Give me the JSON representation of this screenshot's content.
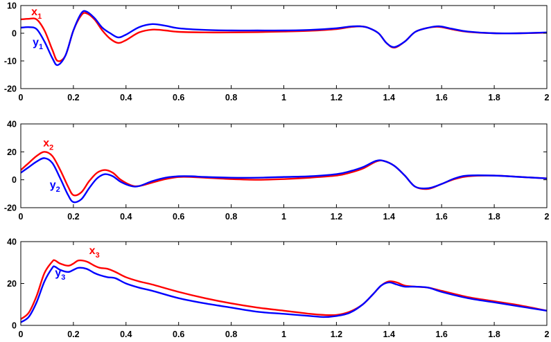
{
  "chart_data": [
    {
      "type": "line",
      "xlim": [
        0,
        2
      ],
      "ylim": [
        -20,
        10
      ],
      "xticks": [
        "0",
        "0.2",
        "0.4",
        "0.6",
        "0.8",
        "1",
        "1.2",
        "1.4",
        "1.6",
        "1.8",
        "2"
      ],
      "yticks": [
        "-20",
        "-10",
        "0",
        "10"
      ],
      "grid": false,
      "series": [
        {
          "name": "x1",
          "color": "#ff0000",
          "x": [
            0,
            0.03,
            0.06,
            0.09,
            0.12,
            0.14,
            0.17,
            0.2,
            0.23,
            0.25,
            0.28,
            0.31,
            0.34,
            0.37,
            0.4,
            0.45,
            0.5,
            0.55,
            0.6,
            0.7,
            0.8,
            0.9,
            1.0,
            1.1,
            1.2,
            1.25,
            1.29,
            1.32,
            1.36,
            1.39,
            1.42,
            1.46,
            1.5,
            1.55,
            1.59,
            1.64,
            1.7,
            1.8,
            1.9,
            2.0
          ],
          "y": [
            5,
            5.2,
            5,
            1,
            -6,
            -10,
            -8,
            1,
            6.5,
            7.2,
            5,
            1,
            -2,
            -3.5,
            -2.5,
            0.3,
            1.3,
            1.0,
            0.5,
            0.3,
            0.3,
            0.4,
            0.6,
            0.9,
            1.5,
            2.2,
            2.5,
            2.0,
            0,
            -3.5,
            -5.2,
            -3,
            0.5,
            2,
            2.3,
            1.4,
            0.5,
            0,
            0,
            0.2
          ]
        },
        {
          "name": "y1",
          "color": "#0000ff",
          "x": [
            0,
            0.03,
            0.06,
            0.09,
            0.12,
            0.14,
            0.17,
            0.2,
            0.23,
            0.25,
            0.28,
            0.31,
            0.34,
            0.37,
            0.4,
            0.45,
            0.5,
            0.55,
            0.6,
            0.7,
            0.8,
            0.9,
            1.0,
            1.1,
            1.2,
            1.25,
            1.29,
            1.32,
            1.36,
            1.39,
            1.42,
            1.46,
            1.5,
            1.55,
            1.59,
            1.64,
            1.7,
            1.8,
            1.9,
            2.0
          ],
          "y": [
            2,
            2.2,
            1.5,
            -3,
            -9,
            -11.5,
            -8,
            1,
            7.2,
            7.8,
            5.5,
            2,
            0,
            -1.5,
            -0.5,
            2.2,
            3.3,
            2.7,
            1.8,
            1.2,
            1.0,
            1.0,
            1.0,
            1.2,
            1.8,
            2.4,
            2.5,
            2.0,
            0,
            -3.5,
            -5,
            -3,
            0.5,
            2,
            2.5,
            1.6,
            0.6,
            0,
            0,
            0.3
          ]
        }
      ],
      "annotations": [
        {
          "text": "x",
          "sub": "1",
          "color": "#ff0000",
          "at": [
            0.04,
            6.5
          ]
        },
        {
          "text": "y",
          "sub": "1",
          "color": "#0000ff",
          "at": [
            0.045,
            -4.5
          ]
        }
      ]
    },
    {
      "type": "line",
      "xlim": [
        0,
        2
      ],
      "ylim": [
        -20,
        40
      ],
      "xticks": [
        "0",
        "0.2",
        "0.4",
        "0.6",
        "0.8",
        "1",
        "1.2",
        "1.4",
        "1.6",
        "1.8",
        "2"
      ],
      "yticks": [
        "-20",
        "0",
        "20",
        "40"
      ],
      "grid": false,
      "series": [
        {
          "name": "x2",
          "color": "#ff0000",
          "x": [
            0,
            0.03,
            0.06,
            0.09,
            0.12,
            0.15,
            0.18,
            0.2,
            0.23,
            0.26,
            0.29,
            0.32,
            0.35,
            0.38,
            0.42,
            0.45,
            0.5,
            0.55,
            0.6,
            0.65,
            0.7,
            0.8,
            0.9,
            1.0,
            1.1,
            1.2,
            1.25,
            1.3,
            1.35,
            1.38,
            1.42,
            1.46,
            1.5,
            1.55,
            1.6,
            1.65,
            1.7,
            1.8,
            1.9,
            2.0
          ],
          "y": [
            7,
            12,
            17,
            20,
            17,
            7,
            -5,
            -11,
            -9,
            -1,
            5,
            7,
            5,
            0,
            -4,
            -4.5,
            -2,
            0.5,
            2,
            2,
            1.5,
            0.5,
            0,
            0.5,
            1.5,
            3,
            5,
            8,
            13,
            13.5,
            10,
            3,
            -5,
            -6.5,
            -3,
            0.5,
            2.5,
            3,
            2,
            1
          ]
        },
        {
          "name": "y2",
          "color": "#0000ff",
          "x": [
            0,
            0.03,
            0.06,
            0.09,
            0.12,
            0.15,
            0.18,
            0.2,
            0.23,
            0.26,
            0.29,
            0.32,
            0.35,
            0.38,
            0.42,
            0.45,
            0.5,
            0.55,
            0.6,
            0.65,
            0.7,
            0.8,
            0.9,
            1.0,
            1.1,
            1.2,
            1.25,
            1.3,
            1.35,
            1.38,
            1.42,
            1.46,
            1.5,
            1.55,
            1.6,
            1.65,
            1.7,
            1.8,
            1.9,
            2.0
          ],
          "y": [
            5,
            9,
            13,
            15.5,
            12,
            1,
            -11,
            -16,
            -14,
            -6,
            1,
            4,
            2.5,
            -1.5,
            -4.5,
            -4.5,
            -1,
            1.5,
            2.5,
            2.5,
            2,
            1.5,
            1.5,
            2,
            2.5,
            4,
            6,
            9,
            13.5,
            13.5,
            10,
            3,
            -5,
            -6,
            -3,
            1,
            3,
            3,
            2,
            1
          ]
        }
      ],
      "annotations": [
        {
          "text": "x",
          "sub": "2",
          "color": "#ff0000",
          "at": [
            0.085,
            24
          ]
        },
        {
          "text": "y",
          "sub": "2",
          "color": "#0000ff",
          "at": [
            0.11,
            -6
          ]
        }
      ]
    },
    {
      "type": "line",
      "xlim": [
        0,
        2
      ],
      "ylim": [
        0,
        40
      ],
      "xticks": [
        "0",
        "0.2",
        "0.4",
        "0.6",
        "0.8",
        "1",
        "1.2",
        "1.4",
        "1.6",
        "1.8",
        "2"
      ],
      "yticks": [
        "0",
        "20",
        "40"
      ],
      "grid": false,
      "series": [
        {
          "name": "x3",
          "color": "#ff0000",
          "x": [
            0,
            0.03,
            0.06,
            0.09,
            0.12,
            0.13,
            0.15,
            0.18,
            0.2,
            0.22,
            0.25,
            0.28,
            0.3,
            0.33,
            0.36,
            0.4,
            0.45,
            0.5,
            0.6,
            0.7,
            0.8,
            0.9,
            1.0,
            1.1,
            1.15,
            1.2,
            1.25,
            1.3,
            1.34,
            1.37,
            1.4,
            1.43,
            1.46,
            1.5,
            1.55,
            1.6,
            1.7,
            1.8,
            1.9,
            2.0
          ],
          "y": [
            3,
            6,
            14,
            25,
            30.5,
            31,
            29.5,
            28.5,
            29.5,
            31,
            30.5,
            28.5,
            27.5,
            27,
            25.5,
            23,
            21,
            19.5,
            16,
            13,
            10.5,
            8.5,
            7,
            5.5,
            5,
            5,
            6.5,
            10,
            15,
            19,
            21,
            20.5,
            19,
            18.5,
            18,
            16.5,
            13.5,
            11.5,
            9.5,
            7
          ]
        },
        {
          "name": "y3",
          "color": "#0000ff",
          "x": [
            0,
            0.03,
            0.06,
            0.09,
            0.12,
            0.13,
            0.15,
            0.18,
            0.2,
            0.22,
            0.25,
            0.28,
            0.3,
            0.33,
            0.36,
            0.4,
            0.45,
            0.5,
            0.6,
            0.7,
            0.8,
            0.9,
            1.0,
            1.1,
            1.15,
            1.2,
            1.25,
            1.3,
            1.34,
            1.37,
            1.4,
            1.43,
            1.46,
            1.5,
            1.55,
            1.6,
            1.7,
            1.8,
            1.9,
            2.0
          ],
          "y": [
            1.5,
            4,
            11,
            21,
            27.5,
            28,
            26.5,
            25.5,
            26.5,
            27.5,
            27,
            25,
            24,
            23,
            22.5,
            20,
            18,
            16.5,
            13,
            10.5,
            8.5,
            6.5,
            5.5,
            4.5,
            4,
            4.5,
            6,
            10,
            15,
            19,
            20.5,
            19.5,
            18.5,
            18.5,
            18,
            16,
            13,
            11,
            9,
            7
          ]
        }
      ],
      "annotations": [
        {
          "text": "x",
          "sub": "3",
          "color": "#ff0000",
          "at": [
            0.26,
            34
          ]
        },
        {
          "text": "y",
          "sub": "3",
          "color": "#0000ff",
          "at": [
            0.13,
            23.5
          ]
        }
      ]
    }
  ]
}
